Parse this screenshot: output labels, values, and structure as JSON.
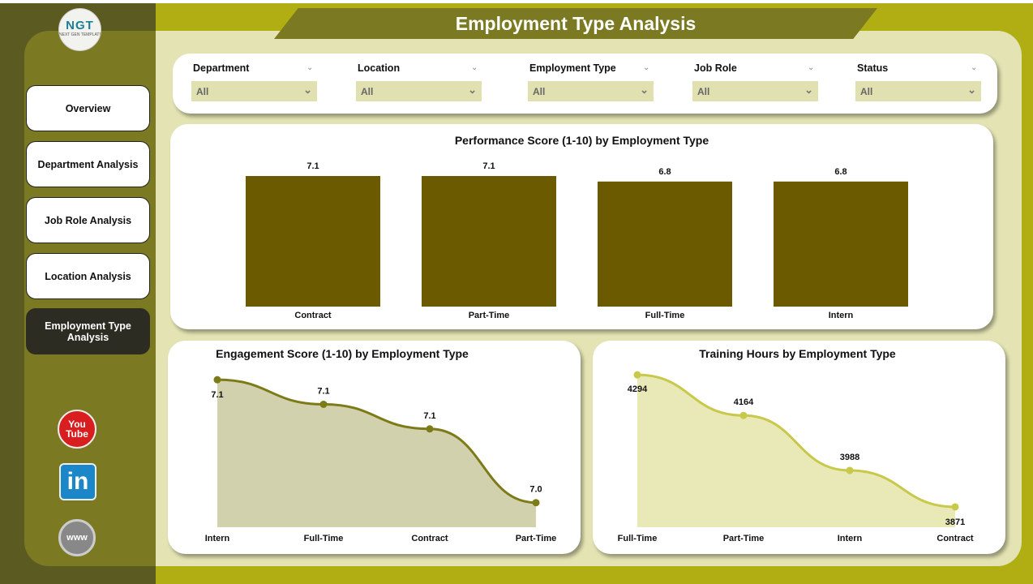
{
  "header": {
    "title": "Employment Type Analysis"
  },
  "logo": {
    "text": "NGT",
    "subtitle": "NEXT GEN TEMPLATES"
  },
  "nav": [
    "Overview",
    "Department Analysis",
    "Job Role Analysis",
    "Location Analysis",
    "Employment Type Analysis"
  ],
  "filters": [
    {
      "label": "Department",
      "value": "All"
    },
    {
      "label": "Location",
      "value": "All"
    },
    {
      "label": "Employment Type",
      "value": "All"
    },
    {
      "label": "Job Role",
      "value": "All"
    },
    {
      "label": "Status",
      "value": "All"
    }
  ],
  "social": {
    "youtube": "You Tube",
    "linkedin": "in",
    "web": "www"
  },
  "colors": {
    "bar": "#6b5a00",
    "engagement": "#7d7a18",
    "training": "#c8c84a"
  },
  "chart_data": [
    {
      "type": "bar",
      "title": "Performance Score (1-10) by Employment Type",
      "categories": [
        "Contract",
        "Part-Time",
        "Full-Time",
        "Intern"
      ],
      "values": [
        7.1,
        7.1,
        6.8,
        6.8
      ],
      "labels": [
        "7.1",
        "7.1",
        "6.8",
        "6.8"
      ],
      "ylim": [
        0,
        7.1
      ]
    },
    {
      "type": "area",
      "title": "Engagement Score (1-10) by Employment Type",
      "categories": [
        "Intern",
        "Full-Time",
        "Contract",
        "Part-Time"
      ],
      "values": [
        7.14,
        7.12,
        7.1,
        7.04
      ],
      "labels": [
        "7.1",
        "7.1",
        "7.1",
        "7.0"
      ],
      "ylim": [
        7.02,
        7.15
      ]
    },
    {
      "type": "area",
      "title": "Training Hours by Employment Type",
      "categories": [
        "Full-Time",
        "Part-Time",
        "Intern",
        "Contract"
      ],
      "values": [
        4294,
        4164,
        3988,
        3871
      ],
      "labels": [
        "4294",
        "4164",
        "3988",
        "3871"
      ],
      "ylim": [
        3806,
        4336
      ]
    }
  ]
}
